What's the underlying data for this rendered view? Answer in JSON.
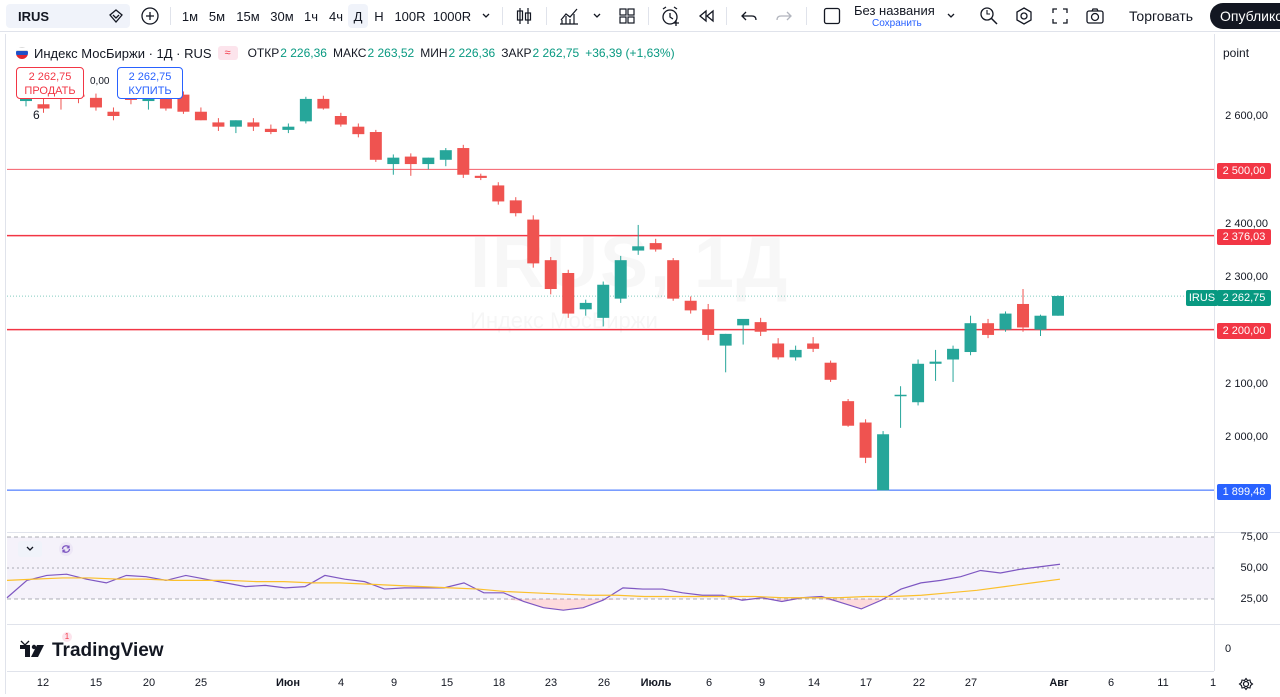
{
  "toolbar": {
    "symbol": "IRUS",
    "intervals": [
      "1м",
      "5м",
      "15м",
      "30м",
      "1ч",
      "4ч",
      "Д",
      "Н",
      "100R",
      "1000R"
    ],
    "active_interval": "Д",
    "layout_name": "Без названия",
    "save_label": "Сохранить",
    "trade_label": "Торговать",
    "publish_label": "Опублико"
  },
  "legend": {
    "title": "Индекс МосБиржи · 1Д · RUS",
    "open_label": "ОТКР",
    "open": "2 226,36",
    "high_label": "МАКС",
    "high": "2 263,52",
    "low_label": "МИН",
    "low": "2 226,36",
    "close_label": "ЗАКР",
    "close": "2 262,75",
    "change": "+36,39 (+1,63%)",
    "wave_icon": "≈"
  },
  "order": {
    "sell_price": "2 262,75",
    "sell_label": "ПРОДАТЬ",
    "buy_price": "2 262,75",
    "buy_label": "КУПИТЬ",
    "spread": "0,00"
  },
  "misc": {
    "indicator_count": "6",
    "scale_mode": "point",
    "watermark_symbol": "IRUS, 1Д",
    "watermark_name": "Индекс МосБиржи",
    "brand": "TradingView",
    "badge": "1",
    "bottom_pane_zero": "0"
  },
  "price_axis": {
    "labels": [
      "2 600,00",
      "2 400,00",
      "2 300,00",
      "2 100,00",
      "2 000,00"
    ],
    "rsi_labels": [
      "75,00",
      "50,00",
      "25,00"
    ],
    "tags": [
      {
        "value": "2 500,00",
        "color": "#f23645"
      },
      {
        "value": "2 376,03",
        "color": "#f23645"
      },
      {
        "value": "2 262,75",
        "color": "#089981"
      },
      {
        "value": "2 200,00",
        "color": "#f23645"
      },
      {
        "value": "1 899,48",
        "color": "#2962ff"
      }
    ],
    "symbol_tag": "IRUS"
  },
  "time_axis": {
    "ticks": [
      "12",
      "15",
      "20",
      "25",
      "Июн",
      "4",
      "9",
      "15",
      "18",
      "23",
      "26",
      "Июль",
      "6",
      "9",
      "14",
      "17",
      "22",
      "27",
      "Авг",
      "6",
      "11",
      "1"
    ]
  },
  "chart_data": {
    "type": "candlestick",
    "symbol": "IRUS",
    "name": "Индекс МосБиржи",
    "interval": "1Д",
    "currency": "RUS",
    "ylim": [
      1850,
      2740
    ],
    "horizontal_lines": [
      2500.0,
      2376.03,
      2200.0,
      1899.48
    ],
    "last_close": 2262.75,
    "candles": [
      {
        "o": 2628,
        "h": 2642,
        "l": 2618,
        "c": 2634
      },
      {
        "o": 2622,
        "h": 2636,
        "l": 2606,
        "c": 2614
      },
      {
        "o": 2642,
        "h": 2648,
        "l": 2612,
        "c": 2632
      },
      {
        "o": 2640,
        "h": 2648,
        "l": 2624,
        "c": 2636
      },
      {
        "o": 2634,
        "h": 2642,
        "l": 2610,
        "c": 2616
      },
      {
        "o": 2608,
        "h": 2616,
        "l": 2592,
        "c": 2600
      },
      {
        "o": 2640,
        "h": 2650,
        "l": 2622,
        "c": 2630
      },
      {
        "o": 2628,
        "h": 2640,
        "l": 2612,
        "c": 2636
      },
      {
        "o": 2634,
        "h": 2640,
        "l": 2610,
        "c": 2614
      },
      {
        "o": 2640,
        "h": 2646,
        "l": 2604,
        "c": 2608
      },
      {
        "o": 2608,
        "h": 2616,
        "l": 2592,
        "c": 2592
      },
      {
        "o": 2588,
        "h": 2596,
        "l": 2572,
        "c": 2580
      },
      {
        "o": 2580,
        "h": 2592,
        "l": 2568,
        "c": 2592
      },
      {
        "o": 2588,
        "h": 2596,
        "l": 2572,
        "c": 2580
      },
      {
        "o": 2576,
        "h": 2584,
        "l": 2566,
        "c": 2570
      },
      {
        "o": 2574,
        "h": 2586,
        "l": 2568,
        "c": 2580
      },
      {
        "o": 2590,
        "h": 2636,
        "l": 2586,
        "c": 2632
      },
      {
        "o": 2632,
        "h": 2638,
        "l": 2612,
        "c": 2614
      },
      {
        "o": 2600,
        "h": 2606,
        "l": 2580,
        "c": 2584
      },
      {
        "o": 2580,
        "h": 2586,
        "l": 2560,
        "c": 2566
      },
      {
        "o": 2570,
        "h": 2574,
        "l": 2514,
        "c": 2518
      },
      {
        "o": 2510,
        "h": 2528,
        "l": 2490,
        "c": 2522
      },
      {
        "o": 2524,
        "h": 2530,
        "l": 2488,
        "c": 2510
      },
      {
        "o": 2510,
        "h": 2522,
        "l": 2500,
        "c": 2522
      },
      {
        "o": 2518,
        "h": 2540,
        "l": 2506,
        "c": 2536
      },
      {
        "o": 2540,
        "h": 2546,
        "l": 2484,
        "c": 2490
      },
      {
        "o": 2488,
        "h": 2492,
        "l": 2480,
        "c": 2484
      },
      {
        "o": 2470,
        "h": 2476,
        "l": 2434,
        "c": 2440
      },
      {
        "o": 2442,
        "h": 2448,
        "l": 2412,
        "c": 2418
      },
      {
        "o": 2406,
        "h": 2414,
        "l": 2316,
        "c": 2324
      },
      {
        "o": 2330,
        "h": 2336,
        "l": 2266,
        "c": 2276
      },
      {
        "o": 2306,
        "h": 2312,
        "l": 2222,
        "c": 2230
      },
      {
        "o": 2238,
        "h": 2256,
        "l": 2226,
        "c": 2250
      },
      {
        "o": 2222,
        "h": 2290,
        "l": 2206,
        "c": 2284
      },
      {
        "o": 2258,
        "h": 2338,
        "l": 2250,
        "c": 2330
      },
      {
        "o": 2348,
        "h": 2396,
        "l": 2340,
        "c": 2356
      },
      {
        "o": 2362,
        "h": 2370,
        "l": 2346,
        "c": 2350
      },
      {
        "o": 2330,
        "h": 2334,
        "l": 2254,
        "c": 2258
      },
      {
        "o": 2254,
        "h": 2262,
        "l": 2230,
        "c": 2236
      },
      {
        "o": 2238,
        "h": 2248,
        "l": 2180,
        "c": 2190
      },
      {
        "o": 2170,
        "h": 2192,
        "l": 2120,
        "c": 2192
      },
      {
        "o": 2208,
        "h": 2218,
        "l": 2172,
        "c": 2220
      },
      {
        "o": 2214,
        "h": 2222,
        "l": 2188,
        "c": 2196
      },
      {
        "o": 2174,
        "h": 2184,
        "l": 2144,
        "c": 2148
      },
      {
        "o": 2148,
        "h": 2170,
        "l": 2142,
        "c": 2162
      },
      {
        "o": 2174,
        "h": 2186,
        "l": 2158,
        "c": 2164
      },
      {
        "o": 2138,
        "h": 2142,
        "l": 2102,
        "c": 2106
      },
      {
        "o": 2066,
        "h": 2070,
        "l": 2018,
        "c": 2020
      },
      {
        "o": 2026,
        "h": 2032,
        "l": 1950,
        "c": 1960
      },
      {
        "o": 1899,
        "h": 2010,
        "l": 1899,
        "c": 2004
      },
      {
        "o": 2076,
        "h": 2094,
        "l": 2016,
        "c": 2078
      },
      {
        "o": 2064,
        "h": 2144,
        "l": 2058,
        "c": 2136
      },
      {
        "o": 2136,
        "h": 2162,
        "l": 2104,
        "c": 2140
      },
      {
        "o": 2144,
        "h": 2170,
        "l": 2102,
        "c": 2164
      },
      {
        "o": 2158,
        "h": 2226,
        "l": 2152,
        "c": 2212
      },
      {
        "o": 2212,
        "h": 2220,
        "l": 2184,
        "c": 2190
      },
      {
        "o": 2200,
        "h": 2234,
        "l": 2196,
        "c": 2230
      },
      {
        "o": 2248,
        "h": 2276,
        "l": 2196,
        "c": 2204
      },
      {
        "o": 2200,
        "h": 2228,
        "l": 2188,
        "c": 2226
      },
      {
        "o": 2226,
        "h": 2264,
        "l": 2226,
        "c": 2263
      }
    ],
    "rsi": {
      "levels": [
        75,
        50,
        25
      ],
      "rsi_values": [
        26,
        40,
        44,
        45,
        41,
        38,
        44,
        43,
        40,
        44,
        41,
        38,
        35,
        36,
        34,
        35,
        44,
        41,
        39,
        33,
        34,
        34,
        34,
        38,
        30,
        30,
        23,
        18,
        16,
        18,
        24,
        34,
        33,
        33,
        30,
        28,
        28,
        24,
        26,
        23,
        26,
        27,
        22,
        17,
        24,
        33,
        38,
        40,
        43,
        48,
        46,
        49,
        51,
        53
      ],
      "ma_values": [
        40,
        41,
        42,
        42,
        41,
        41,
        40,
        40,
        40,
        39,
        39,
        38,
        38,
        37,
        36,
        35,
        34,
        33,
        31,
        30,
        29,
        28,
        28,
        27,
        27,
        27,
        27,
        27,
        26,
        26,
        26,
        27,
        27,
        28,
        30,
        32,
        35,
        38,
        41
      ]
    }
  }
}
